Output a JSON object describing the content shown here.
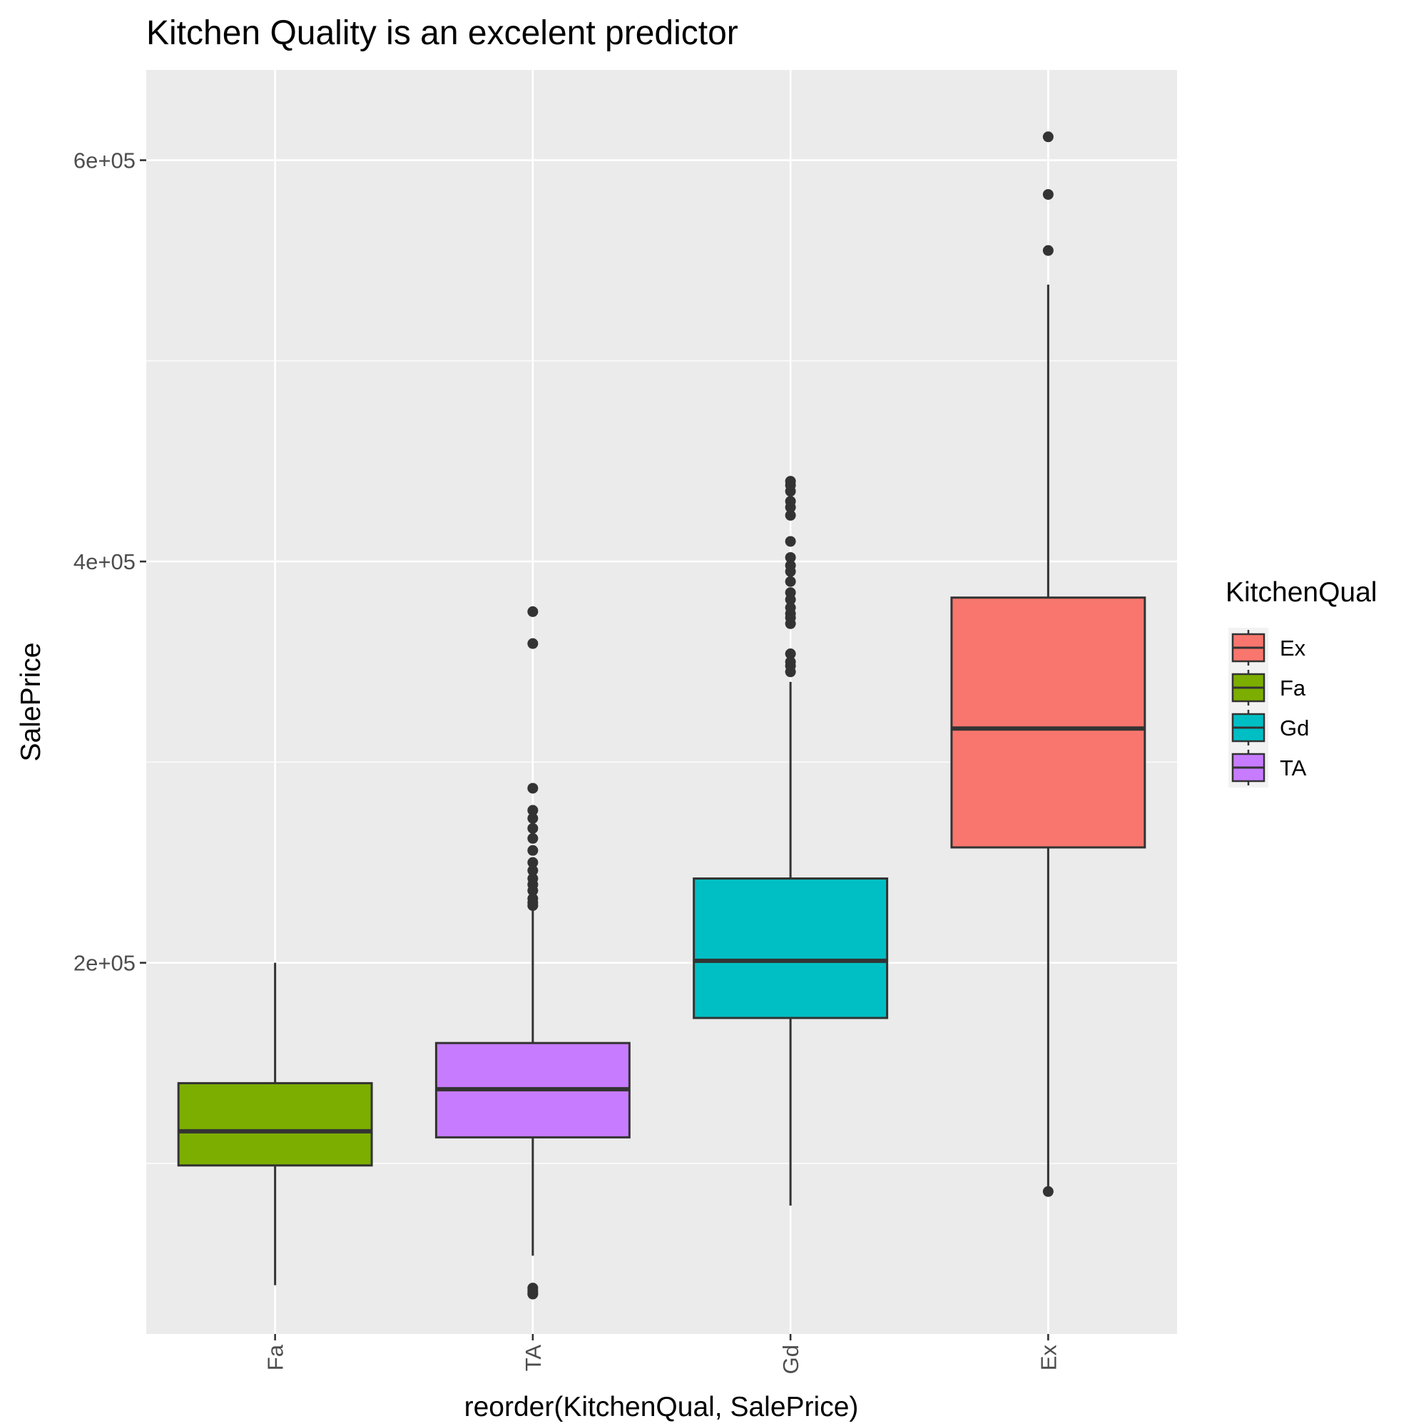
{
  "chart_data": {
    "type": "box",
    "title": "Kitchen Quality is an excelent predictor",
    "xlabel": "reorder(KitchenQual, SalePrice)",
    "ylabel": "SalePrice",
    "ylim": [
      15000,
      645000
    ],
    "ytick_values": [
      200000,
      400000,
      600000
    ],
    "ytick_labels": [
      "2e+05",
      "4e+05",
      "6e+05"
    ],
    "y_minor_gridlines": [
      100000,
      300000,
      500000
    ],
    "grid": true,
    "categories": [
      "Fa",
      "TA",
      "Gd",
      "Ex"
    ],
    "boxes": [
      {
        "category": "Fa",
        "whisker_low": 39300,
        "q1": 99000,
        "median": 116000,
        "q3": 140000,
        "whisker_high": 200000,
        "outliers": [],
        "fill": "#7CAE00"
      },
      {
        "category": "TA",
        "whisker_low": 54000,
        "q1": 113000,
        "median": 137000,
        "q3": 160000,
        "whisker_high": 226000,
        "outliers": [
          34900,
          35311,
          36500,
          37900,
          375000,
          359100,
          287000,
          276000,
          272000,
          267000,
          262000,
          256000,
          250000,
          246000,
          242000,
          239000,
          236000,
          232000,
          230000,
          228500
        ],
        "fill": "#C77CFF"
      },
      {
        "category": "Gd",
        "whisker_low": 79000,
        "q1": 172500,
        "median": 201000,
        "q3": 242000,
        "whisker_high": 340000,
        "outliers": [
          345000,
          348000,
          350000,
          354000,
          369000,
          372000,
          374000,
          377000,
          381000,
          384500,
          390000,
          395000,
          398000,
          402000,
          410000,
          423000,
          427000,
          430000,
          435000,
          438000,
          440000
        ],
        "fill": "#00BFC4"
      },
      {
        "category": "Ex",
        "whisker_low": 86000,
        "q1": 257500,
        "median": 316750,
        "q3": 382000,
        "whisker_high": 538000,
        "outliers": [
          86000,
          555000,
          582933,
          611657
        ],
        "fill": "#F8766D"
      }
    ],
    "legend": {
      "title": "KitchenQual",
      "position": "right",
      "entries": [
        {
          "label": "Ex",
          "color": "#F8766D"
        },
        {
          "label": "Fa",
          "color": "#7CAE00"
        },
        {
          "label": "Gd",
          "color": "#00BFC4"
        },
        {
          "label": "TA",
          "color": "#C77CFF"
        }
      ]
    },
    "colors": {
      "panel_background": "#EBEBEB",
      "gridline": "#FFFFFF",
      "box_outline": "#333333",
      "outlier": "#333333"
    }
  }
}
